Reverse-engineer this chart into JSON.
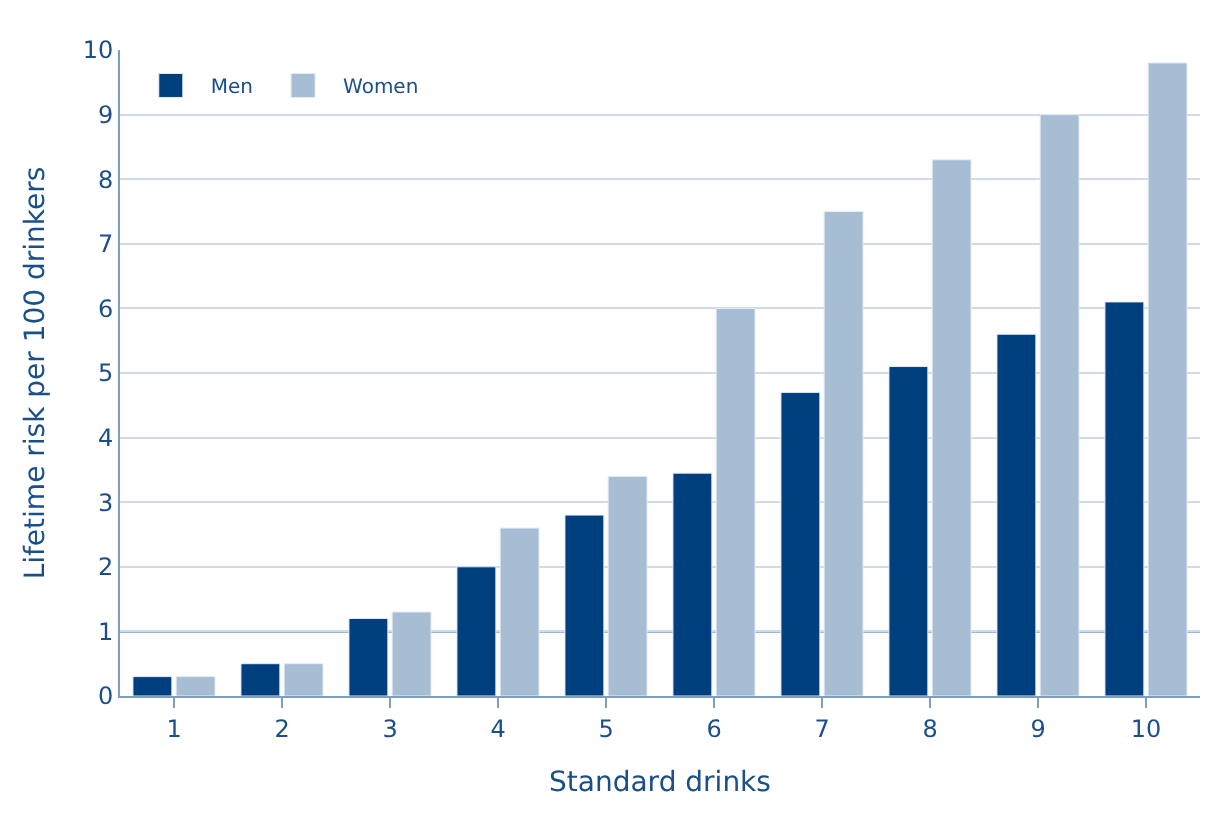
{
  "chart_data": {
    "type": "bar",
    "xlabel": "Standard drinks",
    "ylabel": "Lifetime risk per 100 drinkers",
    "categories": [
      "1",
      "2",
      "3",
      "4",
      "5",
      "6",
      "7",
      "8",
      "9",
      "10"
    ],
    "series": [
      {
        "name": "Men",
        "color": "#003f7d",
        "values": [
          0.3,
          0.5,
          1.2,
          2.0,
          2.8,
          3.45,
          4.7,
          5.1,
          5.6,
          6.1
        ]
      },
      {
        "name": "Women",
        "color": "#a7bdd3",
        "values": [
          0.3,
          0.5,
          1.3,
          2.6,
          3.4,
          6.0,
          7.5,
          8.3,
          9.0,
          9.8
        ]
      }
    ],
    "ylim": [
      0,
      10
    ],
    "yticks": [
      0,
      1,
      2,
      3,
      4,
      5,
      6,
      7,
      8,
      9,
      10
    ],
    "grid": "y",
    "legend": "top left",
    "ref_lines": [
      {
        "axis": "y",
        "value": 1,
        "label": null,
        "color": "#3f6f9f"
      }
    ]
  }
}
